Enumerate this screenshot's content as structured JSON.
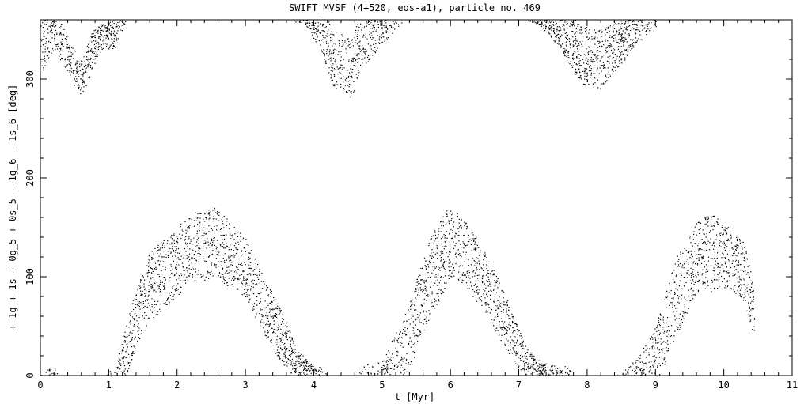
{
  "chart_data": {
    "type": "scatter",
    "title": "SWIFT_MVSF (4+520, eos-a1), particle no. 469",
    "xlabel": "t [Myr]",
    "ylabel": "+ 1g + 1s + 0g_5 + 0s_5 - 1g_6 - 1s_6 [deg]",
    "xlim": [
      0,
      11
    ],
    "ylim": [
      0,
      360
    ],
    "xticks": [
      "0",
      "1",
      "2",
      "3",
      "4",
      "5",
      "6",
      "7",
      "8",
      "9",
      "10",
      "11"
    ],
    "yticks": [
      "0",
      "100",
      "200",
      "300"
    ],
    "grid": false,
    "marker": "dot",
    "point_color": "#000000",
    "series": [
      {
        "points_per_myr": 500,
        "t_range": [
          0,
          10.45
        ],
        "envelope": {
          "t": [
            0.0,
            0.2,
            0.55,
            0.6,
            0.75,
            0.9,
            1.1,
            1.4,
            1.6,
            2.0,
            2.2,
            2.4,
            2.55,
            2.75,
            3.0,
            3.2,
            3.4,
            3.6,
            3.75,
            3.9,
            4.0,
            4.1,
            4.3,
            4.55,
            4.7,
            5.0,
            5.4,
            5.7,
            5.9,
            6.0,
            6.2,
            6.5,
            6.7,
            6.9,
            7.1,
            7.3,
            7.5,
            7.7,
            7.9,
            8.2,
            8.5,
            8.7,
            9.0,
            9.3,
            9.6,
            9.8,
            10.1,
            10.3,
            10.45
          ],
          "center": [
            335,
            350,
            305,
            300,
            328,
            345,
            350,
            60,
            90,
            115,
            130,
            132,
            135,
            125,
            110,
            80,
            55,
            30,
            12,
            5,
            355,
            350,
            320,
            310,
            340,
            355,
            40,
            100,
            125,
            135,
            125,
            95,
            70,
            40,
            15,
            5,
            355,
            345,
            325,
            320,
            340,
            355,
            20,
            80,
            120,
            125,
            118,
            105,
            60
          ],
          "spread": [
            30,
            20,
            18,
            18,
            20,
            15,
            20,
            30,
            35,
            35,
            35,
            35,
            35,
            35,
            30,
            30,
            28,
            25,
            15,
            12,
            15,
            20,
            30,
            30,
            30,
            20,
            35,
            40,
            40,
            35,
            35,
            30,
            30,
            25,
            15,
            10,
            15,
            25,
            30,
            30,
            25,
            20,
            30,
            40,
            35,
            40,
            30,
            30,
            25
          ]
        }
      }
    ]
  }
}
